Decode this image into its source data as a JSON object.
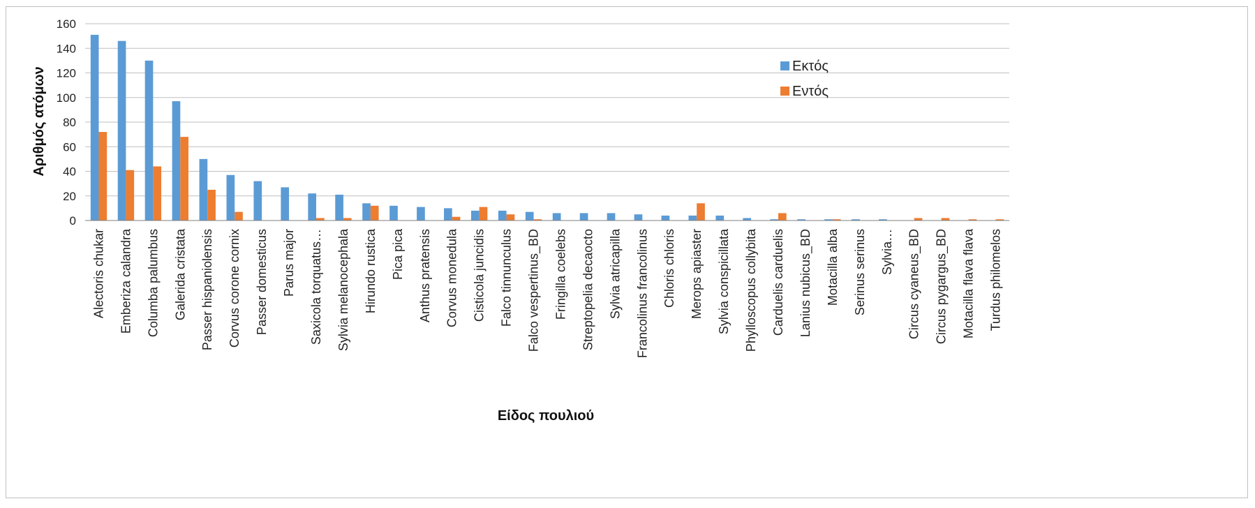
{
  "chart_data": {
    "type": "bar",
    "title": "",
    "xlabel": "Είδος πουλιού",
    "ylabel": "Αριθμός ατόμων",
    "ylim": [
      0,
      160
    ],
    "yticks": [
      0,
      20,
      40,
      60,
      80,
      100,
      120,
      140,
      160
    ],
    "grid": true,
    "legend_position": "top-right",
    "categories": [
      "Alectoris chukar",
      "Emberiza calandra",
      "Columba palumbus",
      "Galerida cristata",
      "Passer hispaniolensis",
      "Corvus corone cornix",
      "Passer domesticus",
      "Parus major",
      "Saxicola torquatus…",
      "Sylvia melanocephala",
      "Hirundo rustica",
      "Pica pica",
      "Anthus pratensis",
      "Corvus monedula",
      "Cisticola juncidis",
      "Falco tinnunculus",
      "Falco vespertinus_BD",
      "Fringilla coelebs",
      "Streptopelia decaocto",
      "Sylvia atricapilla",
      "Francolinus francolinus",
      "Chloris chloris",
      "Merops apiaster",
      "Sylvia conspicillata",
      "Phylloscopus collybita",
      "Carduelis carduelis",
      "Lanius nubicus_BD",
      "Motacilla alba",
      "Serinus serinus",
      "Sylvia…",
      "Circus cyaneus_BD",
      "Circus pygargus_BD",
      "Motacilla flava flava",
      "Turdus philomelos"
    ],
    "series": [
      {
        "name": "Εκτός",
        "color": "#5b9bd5",
        "values": [
          151,
          146,
          130,
          97,
          50,
          37,
          32,
          27,
          22,
          21,
          14,
          12,
          11,
          10,
          8,
          8,
          7,
          6,
          6,
          6,
          5,
          4,
          4,
          4,
          2,
          1,
          1,
          1,
          1,
          1,
          0,
          0,
          0,
          0
        ]
      },
      {
        "name": "Εντός",
        "color": "#ed7d31",
        "values": [
          72,
          41,
          44,
          68,
          25,
          7,
          0,
          0,
          2,
          2,
          12,
          0,
          0,
          3,
          11,
          5,
          1,
          0,
          0,
          0,
          0,
          0,
          14,
          0,
          0,
          6,
          0,
          1,
          0,
          0,
          2,
          2,
          1,
          1
        ]
      }
    ]
  }
}
